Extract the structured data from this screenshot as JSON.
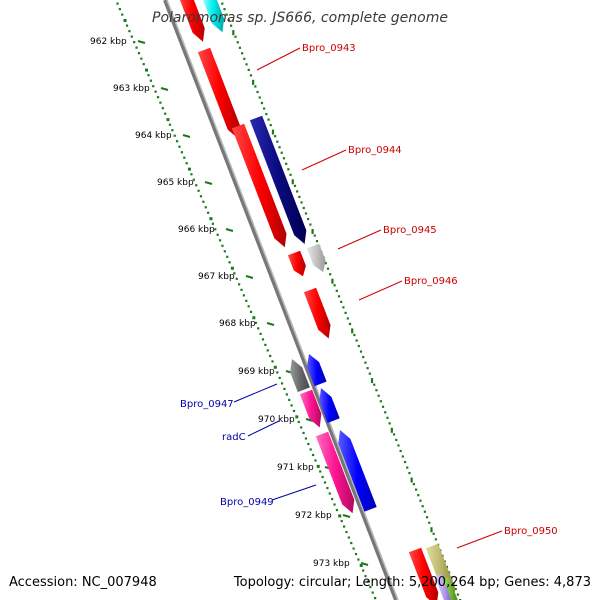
{
  "title": "Polaromonas sp. JS666, complete genome",
  "kbp_labels": [
    "962 kbp",
    "963 kbp",
    "964 kbp",
    "965 kbp",
    "966 kbp",
    "967 kbp",
    "968 kbp",
    "969 kbp",
    "970 kbp",
    "971 kbp",
    "972 kbp",
    "973 kbp"
  ],
  "gene_labels_forward": [
    "Bpro_0943",
    "Bpro_0944",
    "Bpro_0945",
    "Bpro_0946",
    "Bpro_0950"
  ],
  "gene_labels_reverse": [
    "Bpro_0947",
    "radC",
    "Bpro_0949"
  ],
  "colors": {
    "forward_label": "#cc0000",
    "reverse_label": "#0000aa",
    "backbone": "#888888",
    "tick": "#1a7a1a"
  },
  "footer": {
    "accession": "Accession: NC_007948",
    "stats": "Topology: circular; Length: 5,200,264 bp; Genes: 4,873"
  }
}
